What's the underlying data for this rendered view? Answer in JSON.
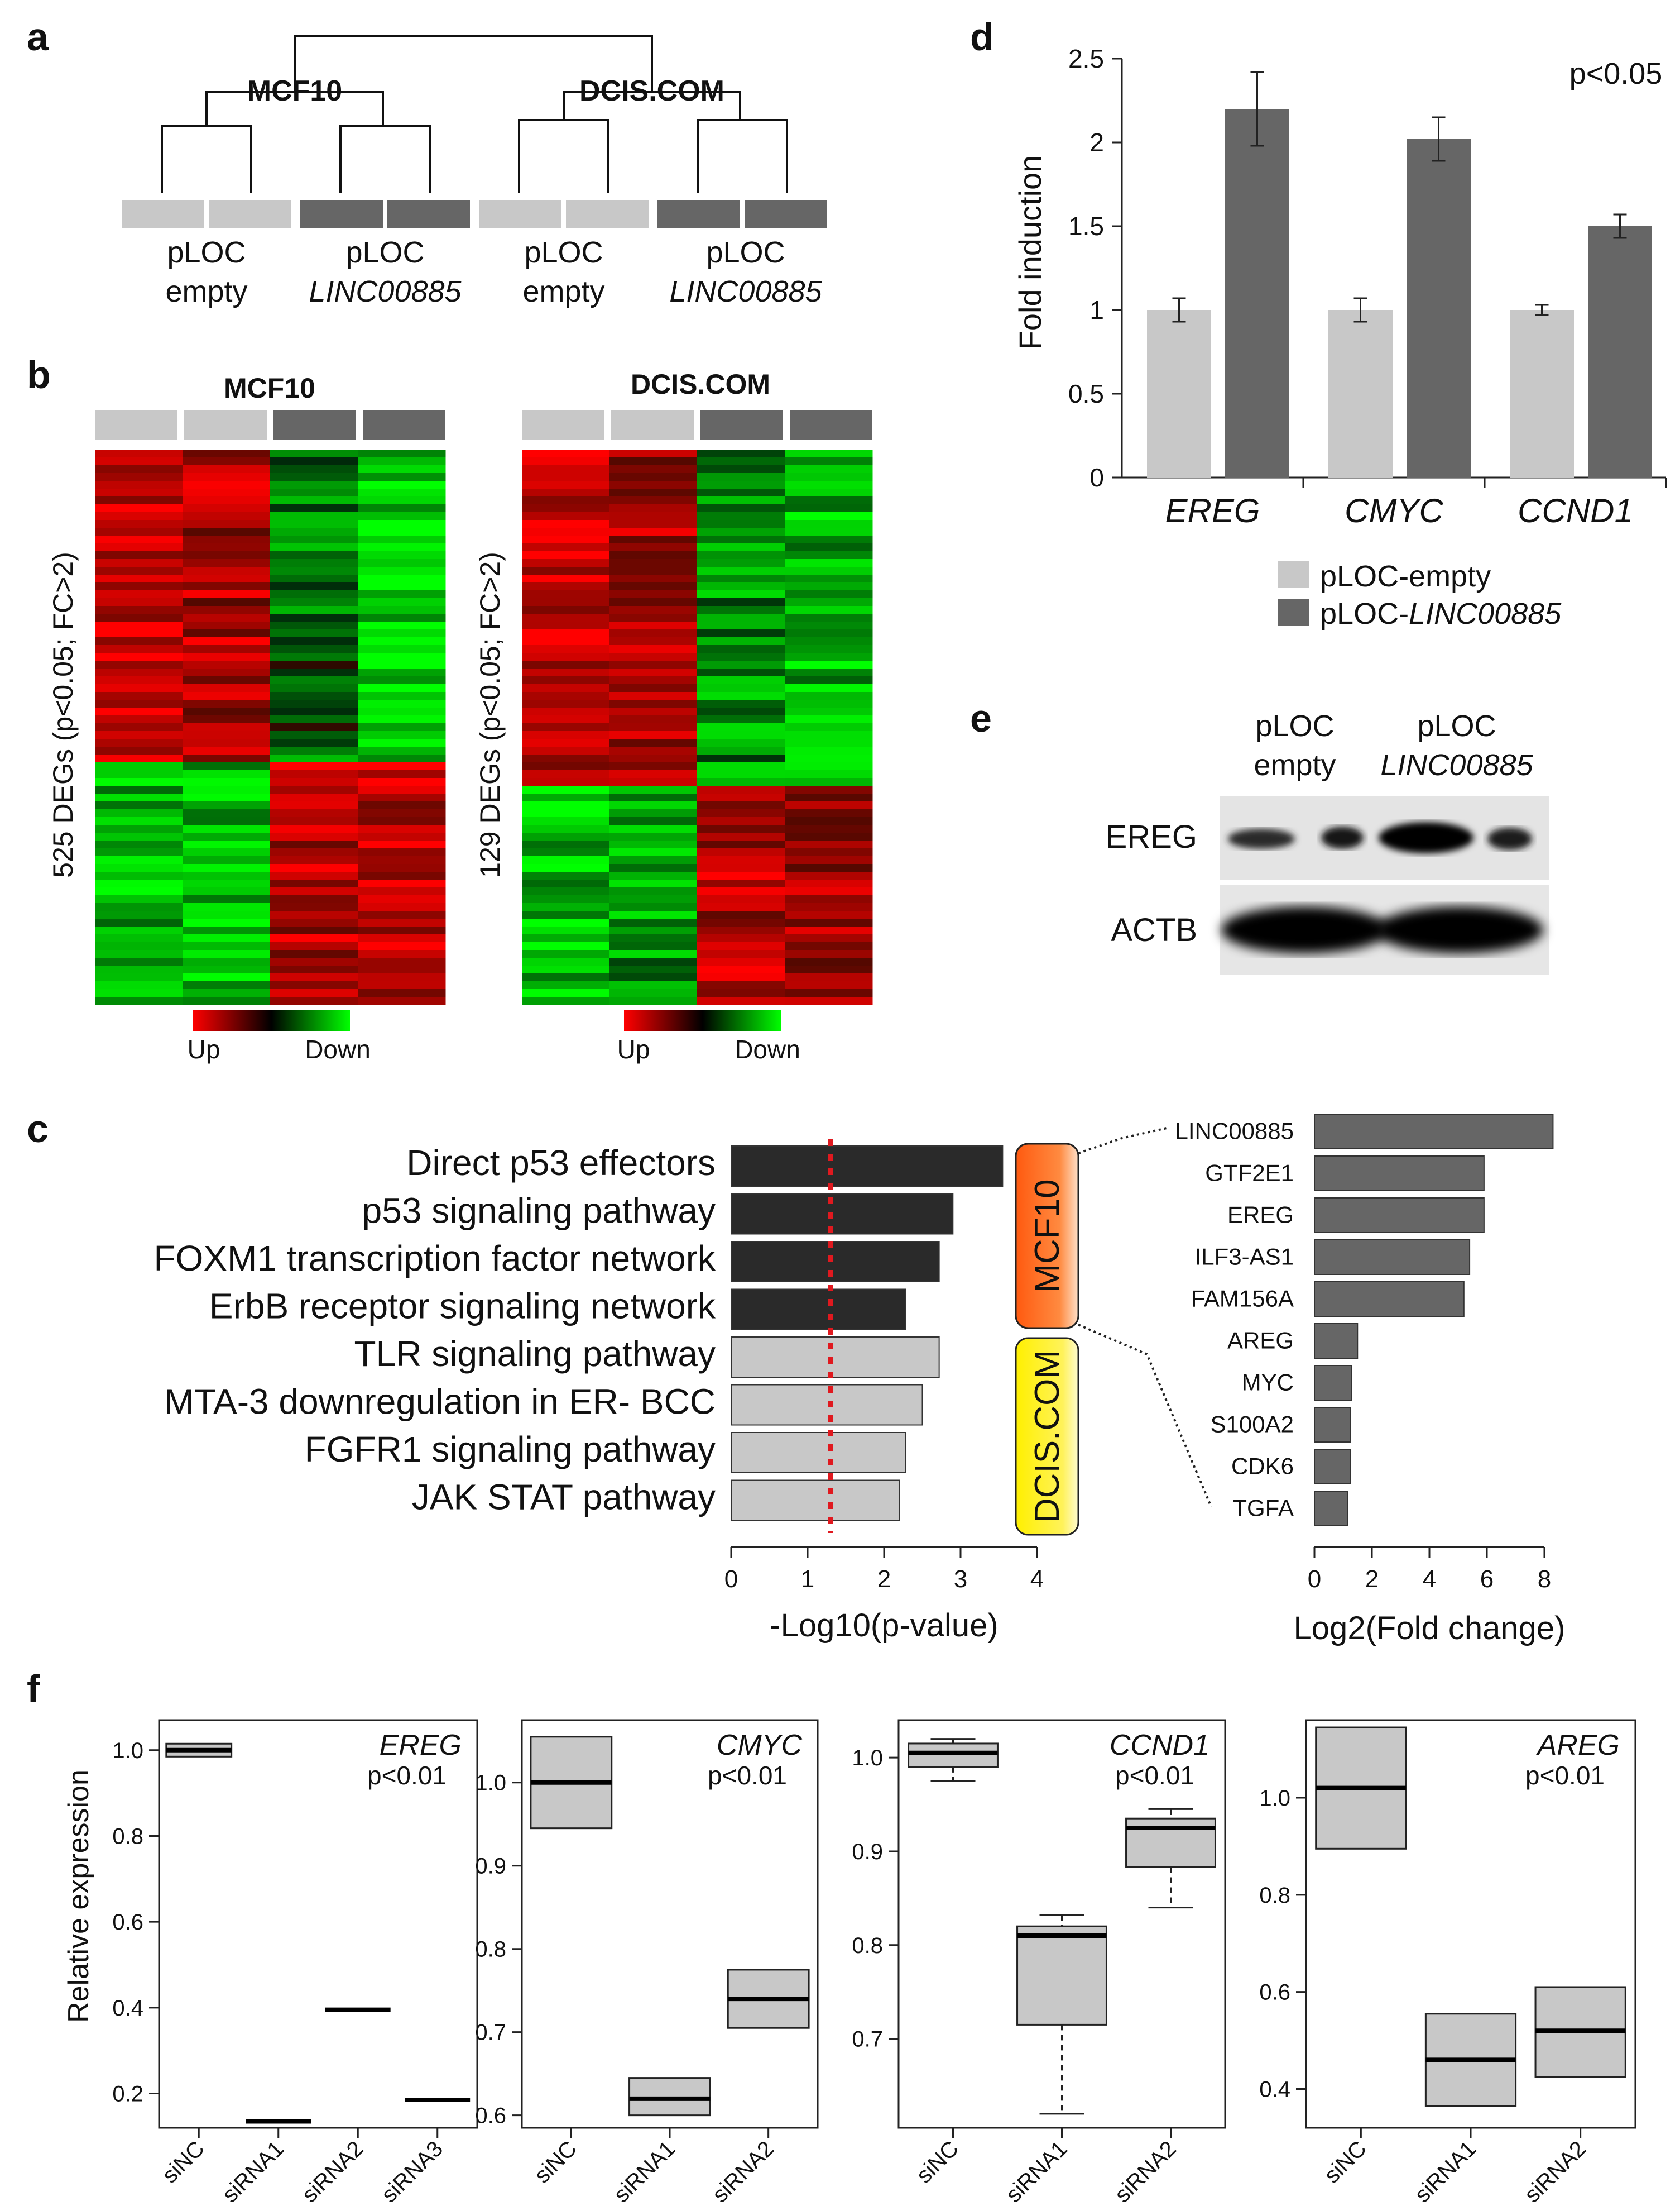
{
  "panel_letters": {
    "a": "a",
    "b": "b",
    "c": "c",
    "d": "d",
    "e": "e",
    "f": "f"
  },
  "colors": {
    "light_bar": "#c8c8c8",
    "dark_bar": "#666666",
    "black_bar": "#2a2a2a",
    "mcf10_orange": "#ff6a1a",
    "dcis_yellow": "#fff200",
    "threshold_red": "#e0191f"
  },
  "panel_a": {
    "group_left": "MCF10",
    "group_right": "DCIS.COM",
    "samples": [
      {
        "line1": "pLOC",
        "line2": "empty"
      },
      {
        "line1": "pLOC",
        "line2": "LINC00885"
      },
      {
        "line1": "pLOC",
        "line2": "empty"
      },
      {
        "line1": "pLOC",
        "line2": "LINC00885"
      }
    ]
  },
  "panel_b": {
    "left_title": "MCF10",
    "right_title": "DCIS.COM",
    "left_ylabel": "525 DEGs  (p<0.05; FC>2)",
    "right_ylabel": "129 DEGs  (p<0.05; FC>2)",
    "legend_up": "Up",
    "legend_down": "Down"
  },
  "panel_c": {
    "pathways": [
      {
        "label": "Direct p53 effectors",
        "value": 3.55,
        "group": "MCF10"
      },
      {
        "label": "p53 signaling pathway",
        "value": 2.9,
        "group": "MCF10"
      },
      {
        "label": "FOXM1 transcription factor network",
        "value": 2.72,
        "group": "MCF10"
      },
      {
        "label": "ErbB receptor signaling network",
        "value": 2.28,
        "group": "MCF10"
      },
      {
        "label": "TLR signaling pathway",
        "value": 2.72,
        "group": "DCIS.COM"
      },
      {
        "label": "MTA-3 downregulation in ER- BCC",
        "value": 2.5,
        "group": "DCIS.COM"
      },
      {
        "label": "FGFR1 signaling pathway",
        "value": 2.28,
        "group": "DCIS.COM"
      },
      {
        "label": "JAK STAT pathway",
        "value": 2.2,
        "group": "DCIS.COM"
      }
    ],
    "pathway_threshold": 1.3,
    "pathway_xlabel": "-Log10(p-value)",
    "pathway_ticks": [
      "0",
      "1",
      "2",
      "3",
      "4"
    ],
    "tag_mcf10": "MCF10",
    "tag_dcis": "DCIS.COM",
    "genes": [
      {
        "label": "LINC00885",
        "value": 8.3
      },
      {
        "label": "GTF2E1",
        "value": 5.9
      },
      {
        "label": "EREG",
        "value": 5.9
      },
      {
        "label": "ILF3-AS1",
        "value": 5.4
      },
      {
        "label": "FAM156A",
        "value": 5.2
      },
      {
        "label": "AREG",
        "value": 1.5
      },
      {
        "label": "MYC",
        "value": 1.3
      },
      {
        "label": "S100A2",
        "value": 1.25
      },
      {
        "label": "CDK6",
        "value": 1.25
      },
      {
        "label": "TGFA",
        "value": 1.15
      }
    ],
    "gene_xlabel": "Log2(Fold change)",
    "gene_ticks": [
      "0",
      "2",
      "4",
      "6",
      "8"
    ]
  },
  "chart_data": [
    {
      "id": "panel_d",
      "type": "bar",
      "categories": [
        "EREG",
        "CMYC",
        "CCND1"
      ],
      "series": [
        {
          "name": "pLOC-empty",
          "values": [
            1.0,
            1.0,
            1.0
          ],
          "errors": [
            0.07,
            0.07,
            0.03
          ]
        },
        {
          "name": "pLOC-LINC00885",
          "values": [
            2.2,
            2.02,
            1.5
          ],
          "errors": [
            0.22,
            0.13,
            0.07
          ]
        }
      ],
      "ylabel": "Fold induction",
      "ylim": [
        0,
        2.5
      ],
      "yticks": [
        "0",
        "0.5",
        "1",
        "1.5",
        "2",
        "2.5"
      ],
      "annotation": "p<0.05",
      "legend": [
        "pLOC-empty",
        "pLOC-LINC00885"
      ]
    },
    {
      "id": "panel_f",
      "type": "box",
      "ylabel": "Relative expression",
      "plots": [
        {
          "gene": "EREG",
          "pval": "p<0.01",
          "ylim": [
            0.12,
            1.07
          ],
          "yticks": [
            "0.2",
            "0.4",
            "0.6",
            "0.8",
            "1.0"
          ],
          "boxes": [
            {
              "label": "siNC",
              "q1": 0.985,
              "median": 1.0,
              "q3": 1.015,
              "min": 0.985,
              "max": 1.015
            },
            {
              "label": "siRNA1",
              "q1": 0.135,
              "median": 0.135,
              "q3": 0.135,
              "min": 0.135,
              "max": 0.135
            },
            {
              "label": "siRNA2",
              "q1": 0.395,
              "median": 0.395,
              "q3": 0.395,
              "min": 0.395,
              "max": 0.395
            },
            {
              "label": "siRNA3",
              "q1": 0.185,
              "median": 0.185,
              "q3": 0.185,
              "min": 0.185,
              "max": 0.185
            }
          ]
        },
        {
          "gene": "CMYC",
          "pval": "p<0.01",
          "ylim": [
            0.585,
            1.075
          ],
          "yticks": [
            "0.6",
            "0.7",
            "0.8",
            "0.9",
            "1.0"
          ],
          "boxes": [
            {
              "label": "siNC",
              "q1": 0.945,
              "median": 1.0,
              "q3": 1.055,
              "min": 0.945,
              "max": 1.055
            },
            {
              "label": "siRNA1",
              "q1": 0.6,
              "median": 0.62,
              "q3": 0.645,
              "min": 0.6,
              "max": 0.645
            },
            {
              "label": "siRNA2",
              "q1": 0.705,
              "median": 0.74,
              "q3": 0.775,
              "min": 0.705,
              "max": 0.775
            }
          ]
        },
        {
          "gene": "CCND1",
          "pval": "p<0.01",
          "ylim": [
            0.605,
            1.04
          ],
          "yticks": [
            "0.7",
            "0.8",
            "0.9",
            "1.0"
          ],
          "boxes": [
            {
              "label": "siNC",
              "q1": 0.99,
              "median": 1.005,
              "q3": 1.015,
              "min": 0.975,
              "max": 1.02
            },
            {
              "label": "siRNA1",
              "q1": 0.715,
              "median": 0.81,
              "q3": 0.82,
              "min": 0.62,
              "max": 0.832
            },
            {
              "label": "siRNA2",
              "q1": 0.883,
              "median": 0.925,
              "q3": 0.935,
              "min": 0.84,
              "max": 0.945
            }
          ]
        },
        {
          "gene": "AREG",
          "pval": "p<0.01",
          "ylim": [
            0.32,
            1.16
          ],
          "yticks": [
            "0.4",
            "0.6",
            "0.8",
            "1.0"
          ],
          "boxes": [
            {
              "label": "siNC",
              "q1": 0.895,
              "median": 1.02,
              "q3": 1.145,
              "min": 0.895,
              "max": 1.145
            },
            {
              "label": "siRNA1",
              "q1": 0.365,
              "median": 0.46,
              "q3": 0.555,
              "min": 0.365,
              "max": 0.555
            },
            {
              "label": "siRNA2",
              "q1": 0.425,
              "median": 0.52,
              "q3": 0.61,
              "min": 0.425,
              "max": 0.61
            }
          ]
        }
      ]
    }
  ],
  "panel_e": {
    "col1_line1": "pLOC",
    "col1_line2": "empty",
    "col2_line1": "pLOC",
    "col2_line2": "LINC00885",
    "row1": "EREG",
    "row2": "ACTB"
  }
}
